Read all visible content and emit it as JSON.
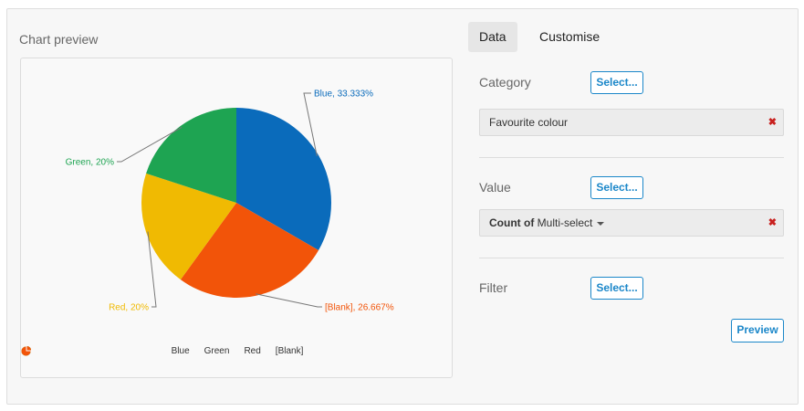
{
  "preview_title": "Chart preview",
  "tabs": [
    {
      "label": "Data",
      "active": true
    },
    {
      "label": "Customise",
      "active": false
    }
  ],
  "sections": {
    "category": {
      "label": "Category",
      "select_label": "Select...",
      "field_value": "Favourite colour",
      "remove_label": "✖"
    },
    "value": {
      "label": "Value",
      "select_label": "Select...",
      "field_prefix": "Count of",
      "field_value": "Multi-select",
      "remove_label": "✖"
    },
    "filter": {
      "label": "Filter",
      "select_label": "Select..."
    }
  },
  "preview_button": "Preview",
  "chart_data": {
    "type": "pie",
    "slices": [
      {
        "name": "Blue",
        "value": 33.333,
        "label": "Blue, 33.333%",
        "color": "#0a6bbb"
      },
      {
        "name": "[Blank]",
        "value": 26.667,
        "label": "[Blank], 26.667%",
        "color": "#f25409"
      },
      {
        "name": "Red",
        "value": 20,
        "label": "Red, 20%",
        "color": "#f0ba02"
      },
      {
        "name": "Green",
        "value": 20,
        "label": "Green, 20%",
        "color": "#1ea452"
      }
    ],
    "legend": [
      {
        "name": "Blue",
        "color": "#0a6bbb"
      },
      {
        "name": "Green",
        "color": "#1ea452"
      },
      {
        "name": "Red",
        "color": "#f0ba02"
      },
      {
        "name": "[Blank]",
        "color": "#f25409"
      }
    ],
    "legend_position": "bottom"
  }
}
